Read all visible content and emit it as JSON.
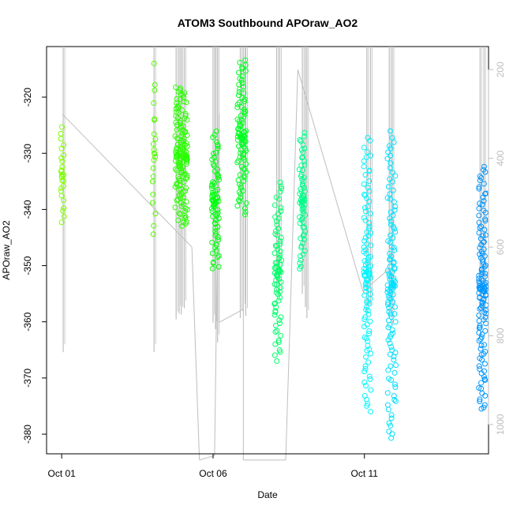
{
  "chart_data": {
    "type": "scatter",
    "title": "ATOM3 Southbound APOraw_AO2",
    "xlabel": "Date",
    "ylabel": "APOraw_AO2",
    "x_tick_labels": [
      "Oct 01",
      "Oct 06",
      "Oct 11"
    ],
    "x_tick_days": [
      1,
      6,
      11
    ],
    "xlim_days": [
      0.5,
      15.1
    ],
    "y_ticks": [
      -320,
      -330,
      -340,
      -350,
      -360,
      -370,
      -380
    ],
    "ylim": [
      -383.5,
      -311
    ],
    "right_axis": {
      "ticks": [
        200,
        400,
        600,
        800,
        1000
      ],
      "range": [
        148,
        1066
      ],
      "color": "#bebebe",
      "direction": "inverted"
    },
    "grid": false,
    "legend": "none",
    "point_style": "open-circle",
    "depth_line_color": "#bebebe",
    "depth_trace": [
      {
        "d": 1.02,
        "depth": 300
      },
      {
        "d": 5.3,
        "depth": 600
      },
      {
        "d": 5.55,
        "depth": 1080
      },
      {
        "d": 6.05,
        "depth": 1070
      },
      {
        "d": 6.2,
        "depth": 300
      },
      {
        "d": 6.2,
        "depth": 770
      },
      {
        "d": 7.0,
        "depth": 740
      },
      {
        "d": 7.0,
        "depth": 1080
      },
      {
        "d": 8.4,
        "depth": 1080
      },
      {
        "d": 8.8,
        "depth": 200
      },
      {
        "d": 10.95,
        "depth": 700
      },
      {
        "d": 11.8,
        "depth": 650
      }
    ],
    "depth_casts": [
      {
        "d": 1.05,
        "top": 20,
        "bottom": 837
      },
      {
        "d": 4.05,
        "top": 20,
        "bottom": 837
      },
      {
        "d": 4.78,
        "top": 20,
        "bottom": 763
      },
      {
        "d": 4.88,
        "top": 20,
        "bottom": 750
      },
      {
        "d": 4.95,
        "top": 20,
        "bottom": 752
      },
      {
        "d": 5.05,
        "top": 20,
        "bottom": 738
      },
      {
        "d": 6.0,
        "top": 20,
        "bottom": 770
      },
      {
        "d": 6.08,
        "top": 20,
        "bottom": 785
      },
      {
        "d": 6.15,
        "top": 20,
        "bottom": 815
      },
      {
        "d": 6.9,
        "top": 20,
        "bottom": 760
      },
      {
        "d": 7.0,
        "top": 20,
        "bottom": 745
      },
      {
        "d": 7.08,
        "top": 20,
        "bottom": 755
      },
      {
        "d": 8.1,
        "top": 20,
        "bottom": 700
      },
      {
        "d": 8.2,
        "top": 20,
        "bottom": 715
      },
      {
        "d": 8.95,
        "top": 20,
        "bottom": 705
      },
      {
        "d": 9.05,
        "top": 20,
        "bottom": 735
      },
      {
        "d": 9.1,
        "top": 20,
        "bottom": 760
      },
      {
        "d": 11.08,
        "top": 20,
        "bottom": 752
      },
      {
        "d": 11.2,
        "top": 20,
        "bottom": 730
      },
      {
        "d": 11.82,
        "top": 20,
        "bottom": 760
      },
      {
        "d": 11.92,
        "top": 20,
        "bottom": 775
      },
      {
        "d": 14.82,
        "top": 20,
        "bottom": 760
      },
      {
        "d": 14.95,
        "top": 20,
        "bottom": 770
      }
    ],
    "groups": [
      {
        "d": 1.02,
        "spread": 0.06,
        "n": 26,
        "ymin": -343,
        "ymax": -325,
        "color": "#7fff00"
      },
      {
        "d": 4.05,
        "spread": 0.05,
        "n": 22,
        "ymin": -346,
        "ymax": -314,
        "color": "#55ff00"
      },
      {
        "d": 4.95,
        "spread": 0.2,
        "n": 150,
        "ymin": -343,
        "ymax": -318,
        "color": "#2aff00"
      },
      {
        "d": 6.08,
        "spread": 0.12,
        "n": 75,
        "ymin": -351,
        "ymax": -326,
        "color": "#00ff0c"
      },
      {
        "d": 6.95,
        "spread": 0.15,
        "n": 100,
        "ymin": -341,
        "ymax": -313,
        "color": "#00ff20"
      },
      {
        "d": 8.15,
        "spread": 0.12,
        "n": 80,
        "ymin": -367,
        "ymax": -335,
        "color": "#00ff6a"
      },
      {
        "d": 8.95,
        "spread": 0.1,
        "n": 70,
        "ymin": -351,
        "ymax": -326,
        "color": "#00ff8a"
      },
      {
        "d": 11.1,
        "spread": 0.12,
        "n": 110,
        "ymin": -376,
        "ymax": -327,
        "color": "#00f5ff"
      },
      {
        "d": 11.9,
        "spread": 0.14,
        "n": 120,
        "ymin": -381,
        "ymax": -326,
        "color": "#00dfff"
      },
      {
        "d": 14.9,
        "spread": 0.12,
        "n": 130,
        "ymin": -376,
        "ymax": -332,
        "color": "#0096ff"
      }
    ]
  }
}
